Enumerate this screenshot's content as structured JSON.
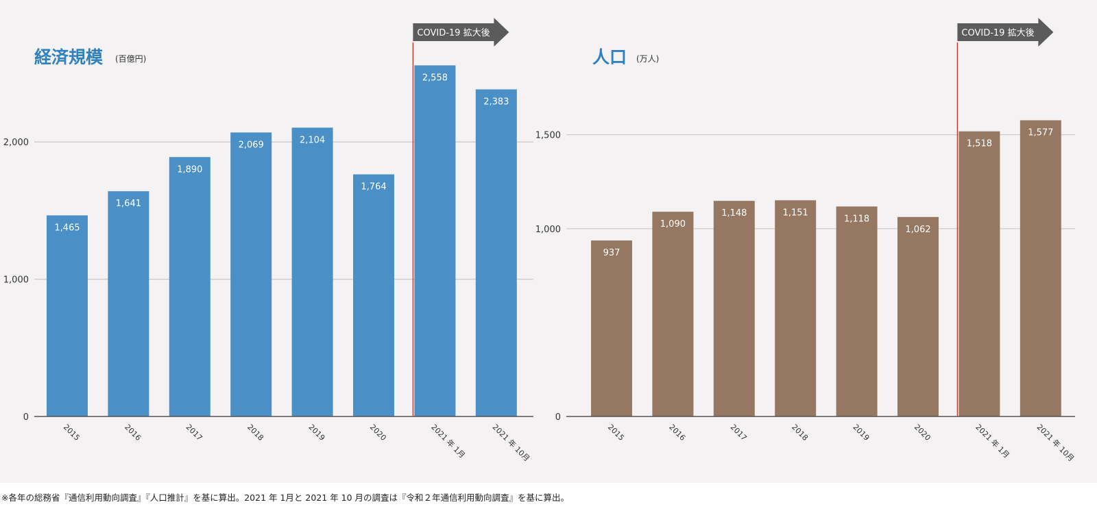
{
  "chart_data": [
    {
      "type": "bar",
      "title": "経済規模",
      "unit": "(百億円)",
      "title_color": "#2f82be",
      "bar_color": "#4a8fc6",
      "categories": [
        "2015",
        "2016",
        "2017",
        "2018",
        "2019",
        "2020",
        "2021 年 1月",
        "2021 年 10月"
      ],
      "values": [
        1465,
        1641,
        1890,
        2069,
        2104,
        1764,
        2558,
        2383
      ],
      "value_labels": [
        "1,465",
        "1,641",
        "1,890",
        "2,069",
        "2,104",
        "1,764",
        "2,558",
        "2,383"
      ],
      "yticks": [
        0,
        1000,
        2000
      ],
      "ytick_labels": [
        "0",
        "1,000",
        "2,000"
      ],
      "ylim": [
        0,
        2600
      ],
      "grid": true,
      "annotation": {
        "text": "COVID-19 拡大後",
        "start_category": "2021 年 1月"
      }
    },
    {
      "type": "bar",
      "title": "人口",
      "unit": "(万人)",
      "title_color": "#2f82be",
      "bar_color": "#967862",
      "categories": [
        "2015",
        "2016",
        "2017",
        "2018",
        "2019",
        "2020",
        "2021 年 1月",
        "2021 年 10月"
      ],
      "values": [
        937,
        1090,
        1148,
        1151,
        1118,
        1062,
        1518,
        1577
      ],
      "value_labels": [
        "937",
        "1,090",
        "1,148",
        "1,151",
        "1,118",
        "1,062",
        "1,518",
        "1,577"
      ],
      "yticks": [
        0,
        1000,
        1500
      ],
      "ytick_labels": [
        "0",
        "1,000",
        "1,500"
      ],
      "ylim": [
        0,
        1900
      ],
      "grid": true,
      "annotation": {
        "text": "COVID-19 拡大後",
        "start_category": "2021 年 1月"
      }
    }
  ],
  "colors": {
    "covid_line": "#c0392b",
    "covid_arrow": "#5b5b5b"
  },
  "footnote": "※各年の総務省『通信利用動向調査』『人口推計』を基に算出。2021 年 1月と 2021 年 10 月の調査は『令和２年通信利用動向調査』を基に算出。"
}
